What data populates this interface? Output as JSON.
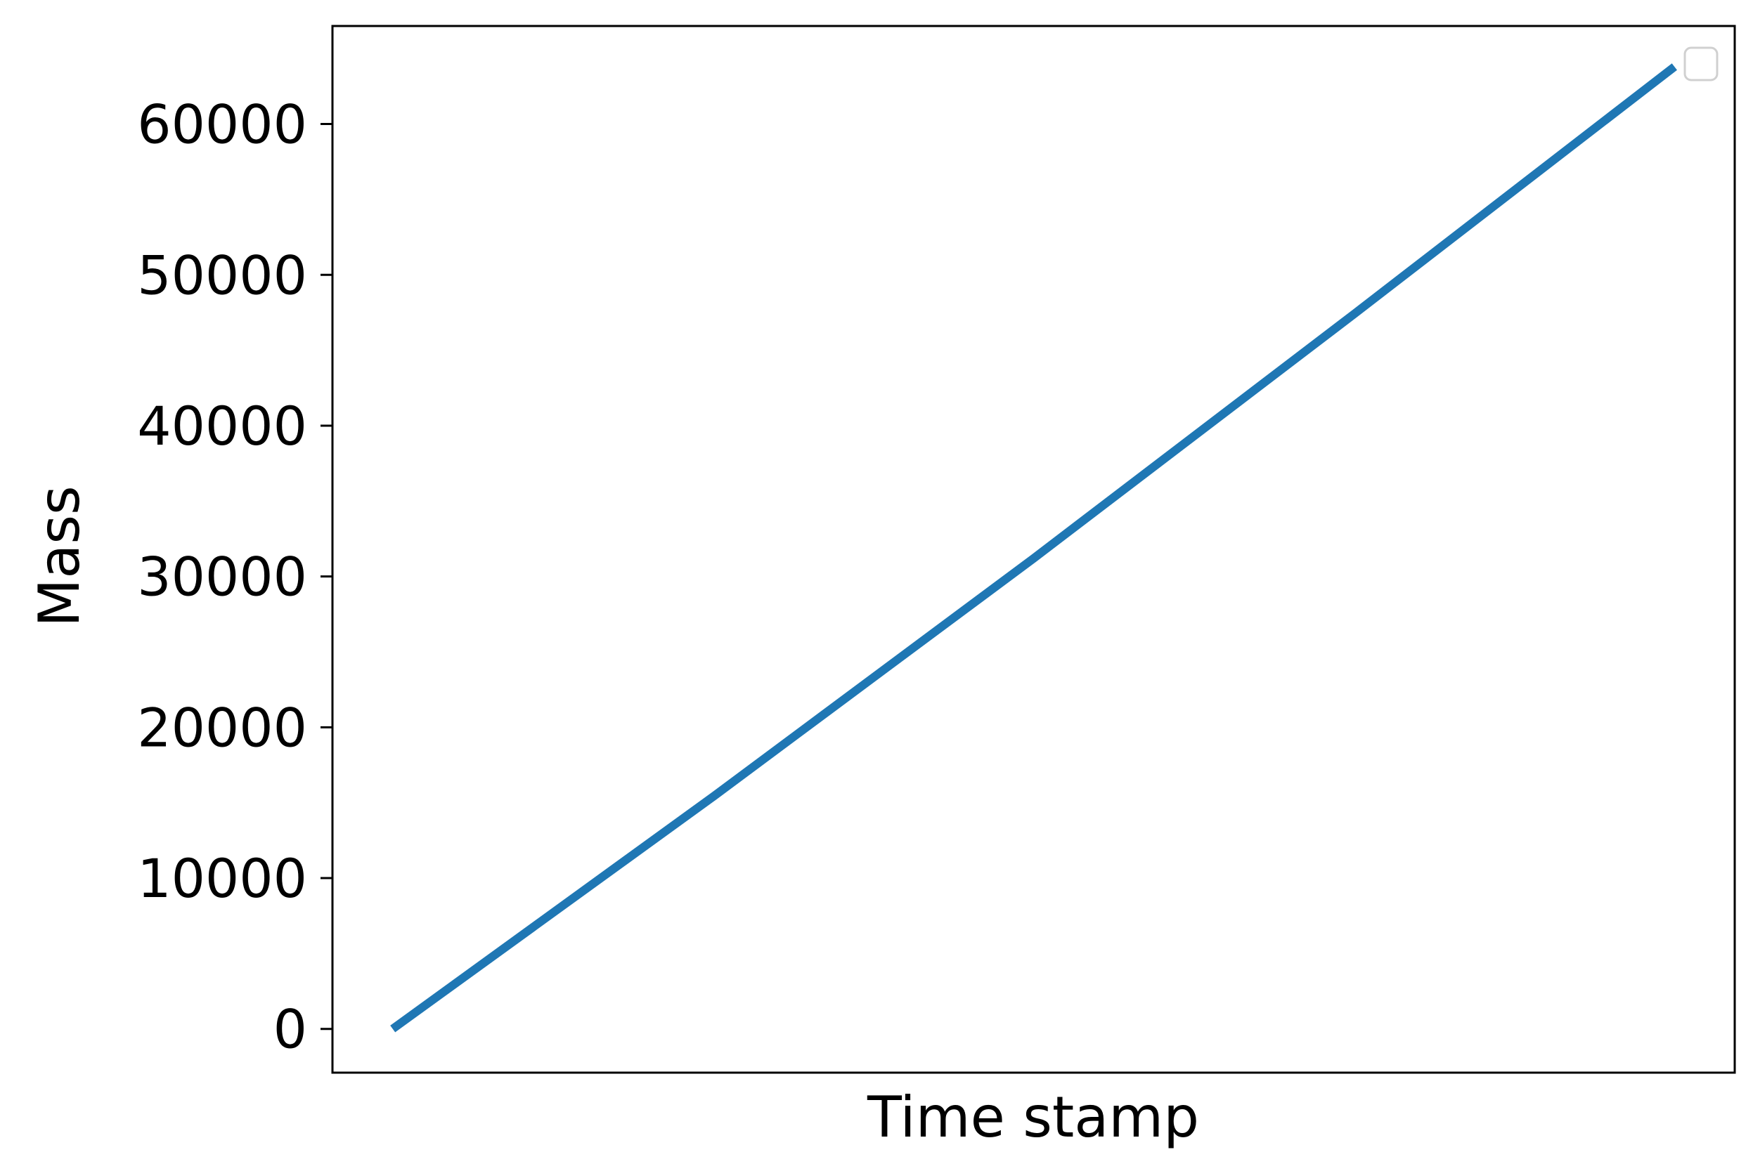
{
  "chart_data": {
    "type": "line",
    "title": "",
    "xlabel": "Time stamp",
    "ylabel": "Mass",
    "x_ticks_shown": false,
    "y_ticks": [
      0,
      10000,
      20000,
      30000,
      40000,
      50000,
      60000
    ],
    "y_tick_labels": [
      "0",
      "10000",
      "20000",
      "30000",
      "40000",
      "50000",
      "60000"
    ],
    "ylim": [
      -2900,
      66500
    ],
    "xlim": [
      -0.047,
      1.047
    ],
    "grid": false,
    "legend": {
      "placement": "top-right",
      "entries": []
    },
    "series": [
      {
        "color": "#1f77b4",
        "x": [
          0,
          0.25,
          0.5,
          0.75,
          1
        ],
        "y": [
          0,
          15400,
          31200,
          47400,
          63800
        ]
      }
    ]
  }
}
